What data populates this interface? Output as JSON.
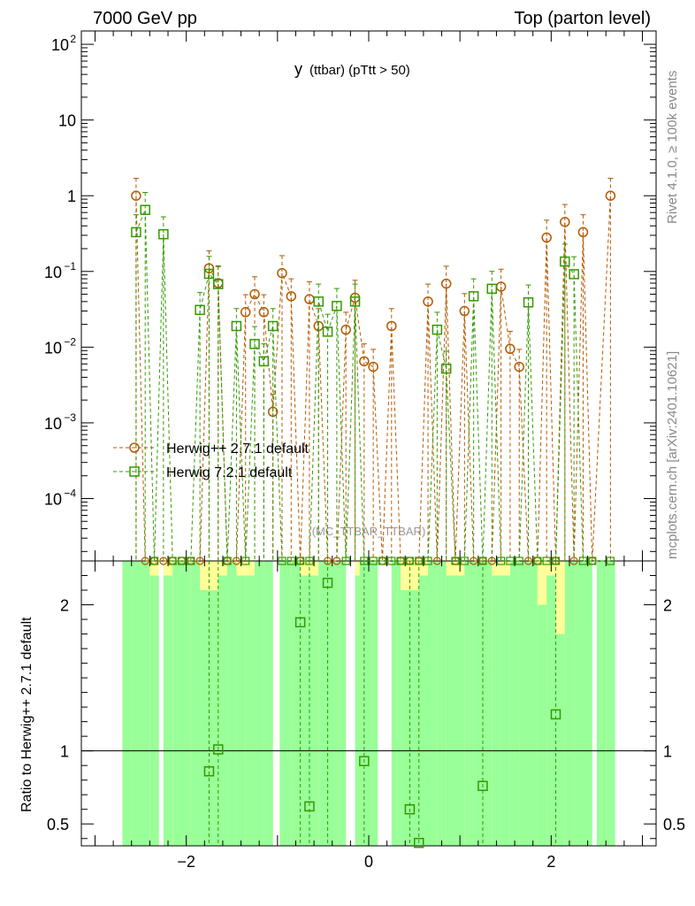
{
  "header": {
    "left": "7000 GeV pp",
    "right": "Top (parton level)"
  },
  "side_labels": {
    "rivet": "Rivet 4.1.0, ≥ 100k events",
    "mcplots": "mcplots.cern.ch [arXiv:2401.10621]"
  },
  "chart_data": {
    "type": "line",
    "title_main": "y",
    "title_sub": "(ttbar)  (pTtt > 50)",
    "watermark": "(MC_TTBAR_TTBAR)",
    "xlim": [
      -3.15,
      3.15
    ],
    "x_ticks": [
      -2,
      0,
      2
    ],
    "x_tick_labels": [
      "−2",
      "0",
      "2"
    ],
    "main_panel": {
      "yscale": "log",
      "ylim": [
        1.5e-05,
        150
      ],
      "y_ticks": [
        {
          "label": "10",
          "exp": "2",
          "value": 100
        },
        {
          "label": "10",
          "exp": "",
          "value": 10
        },
        {
          "label": "1",
          "exp": "",
          "value": 1
        },
        {
          "label": "10",
          "exp": "−1",
          "value": 0.1
        },
        {
          "label": "10",
          "exp": "−2",
          "value": 0.01
        },
        {
          "label": "10",
          "exp": "−3",
          "value": 0.001
        },
        {
          "label": "10",
          "exp": "−4",
          "value": 0.0001
        }
      ]
    },
    "ratio_panel": {
      "ylabel": "Ratio to Herwig++ 2.7.1 default",
      "ylim": [
        0.35,
        2.3
      ],
      "y_ticks": [
        0.5,
        1,
        2
      ],
      "y_tick_labels": [
        "0.5",
        "1",
        "2"
      ],
      "reference": 1,
      "bands": [
        {
          "x": -2.65,
          "w": 0.1,
          "y0": 0.35,
          "y1": 2.3,
          "y0g": 0.35,
          "y1g": 2.3
        },
        {
          "x": -2.55,
          "w": 0.1,
          "y0": 0.35,
          "y1": 2.3,
          "y0g": 0.35,
          "y1g": 2.3
        },
        {
          "x": -2.45,
          "w": 0.1,
          "y0": 0.35,
          "y1": 2.3,
          "y0g": 0.35,
          "y1g": 2.3
        },
        {
          "x": -2.35,
          "w": 0.1,
          "y0": 0.35,
          "y1": 2.3,
          "y0g": 0.35,
          "y1g": 2.2
        },
        {
          "x": -2.2,
          "w": 0.1,
          "y0": 0.35,
          "y1": 2.3,
          "y0g": 0.35,
          "y1g": 2.2
        },
        {
          "x": -2.1,
          "w": 0.1,
          "y0": 0.35,
          "y1": 2.3,
          "y0g": 0.35,
          "y1g": 2.3
        },
        {
          "x": -2.0,
          "w": 0.1,
          "y0": 0.35,
          "y1": 2.3,
          "y0g": 0.35,
          "y1g": 2.3
        },
        {
          "x": -1.9,
          "w": 0.1,
          "y0": 0.35,
          "y1": 2.3,
          "y0g": 0.35,
          "y1g": 2.3
        },
        {
          "x": -1.8,
          "w": 0.1,
          "y0": 0.35,
          "y1": 2.3,
          "y0g": 0.35,
          "y1g": 2.1
        },
        {
          "x": -1.7,
          "w": 0.1,
          "y0": 0.35,
          "y1": 2.3,
          "y0g": 0.35,
          "y1g": 2.1
        },
        {
          "x": -1.6,
          "w": 0.1,
          "y0": 0.35,
          "y1": 2.3,
          "y0g": 0.35,
          "y1g": 2.2
        },
        {
          "x": -1.5,
          "w": 0.1,
          "y0": 0.35,
          "y1": 2.3,
          "y0g": 0.35,
          "y1g": 2.3
        },
        {
          "x": -1.4,
          "w": 0.1,
          "y0": 0.35,
          "y1": 2.3,
          "y0g": 0.35,
          "y1g": 2.2
        },
        {
          "x": -1.3,
          "w": 0.1,
          "y0": 0.35,
          "y1": 2.3,
          "y0g": 0.35,
          "y1g": 2.2
        },
        {
          "x": -1.2,
          "w": 0.1,
          "y0": 0.35,
          "y1": 2.3,
          "y0g": 0.35,
          "y1g": 2.3
        },
        {
          "x": -1.1,
          "w": 0.1,
          "y0": 0.35,
          "y1": 2.3,
          "y0g": 0.35,
          "y1g": 2.3
        },
        {
          "x": -0.95,
          "w": 0.05,
          "y0": 0.35,
          "y1": 2.3,
          "y0g": 0.35,
          "y1g": 2.3
        },
        {
          "x": -0.9,
          "w": 0.1,
          "y0": 0.35,
          "y1": 2.3,
          "y0g": 0.35,
          "y1g": 2.3
        },
        {
          "x": -0.8,
          "w": 0.1,
          "y0": 0.35,
          "y1": 2.3,
          "y0g": 0.35,
          "y1g": 2.3
        },
        {
          "x": -0.7,
          "w": 0.1,
          "y0": 0.35,
          "y1": 2.3,
          "y0g": 0.35,
          "y1g": 2.2
        },
        {
          "x": -0.6,
          "w": 0.1,
          "y0": 0.35,
          "y1": 2.3,
          "y0g": 0.35,
          "y1g": 2.2
        },
        {
          "x": -0.5,
          "w": 0.1,
          "y0": 0.35,
          "y1": 2.3,
          "y0g": 0.35,
          "y1g": 2.3
        },
        {
          "x": -0.4,
          "w": 0.1,
          "y0": 0.35,
          "y1": 2.3,
          "y0g": 0.35,
          "y1g": 2.3
        },
        {
          "x": -0.3,
          "w": 0.1,
          "y0": 0.35,
          "y1": 2.3,
          "y0g": 0.35,
          "y1g": 2.3
        },
        {
          "x": -0.1,
          "w": 0.1,
          "y0": 0.35,
          "y1": 2.3,
          "y0g": 0.35,
          "y1g": 2.2
        },
        {
          "x": 0.0,
          "w": 0.2,
          "y0": 0.35,
          "y1": 2.3,
          "y0g": 0.35,
          "y1g": 2.3
        },
        {
          "x": 0.3,
          "w": 0.1,
          "y0": 0.35,
          "y1": 2.3,
          "y0g": 0.35,
          "y1g": 2.3
        },
        {
          "x": 0.4,
          "w": 0.1,
          "y0": 0.35,
          "y1": 2.3,
          "y0g": 0.35,
          "y1g": 2.1
        },
        {
          "x": 0.5,
          "w": 0.1,
          "y0": 0.35,
          "y1": 2.3,
          "y0g": 0.35,
          "y1g": 2.1
        },
        {
          "x": 0.6,
          "w": 0.1,
          "y0": 0.35,
          "y1": 2.3,
          "y0g": 0.35,
          "y1g": 2.2
        },
        {
          "x": 0.7,
          "w": 0.1,
          "y0": 0.35,
          "y1": 2.3,
          "y0g": 0.35,
          "y1g": 2.3
        },
        {
          "x": 0.8,
          "w": 0.1,
          "y0": 0.35,
          "y1": 2.3,
          "y0g": 0.35,
          "y1g": 2.3
        },
        {
          "x": 0.9,
          "w": 0.1,
          "y0": 0.35,
          "y1": 2.3,
          "y0g": 0.35,
          "y1g": 2.2
        },
        {
          "x": 1.0,
          "w": 0.1,
          "y0": 0.35,
          "y1": 2.3,
          "y0g": 0.35,
          "y1g": 2.2
        },
        {
          "x": 1.1,
          "w": 0.1,
          "y0": 0.35,
          "y1": 2.3,
          "y0g": 0.35,
          "y1g": 2.3
        },
        {
          "x": 1.2,
          "w": 0.1,
          "y0": 0.35,
          "y1": 2.3,
          "y0g": 0.35,
          "y1g": 2.3
        },
        {
          "x": 1.3,
          "w": 0.1,
          "y0": 0.35,
          "y1": 2.3,
          "y0g": 0.35,
          "y1g": 2.3
        },
        {
          "x": 1.4,
          "w": 0.1,
          "y0": 0.35,
          "y1": 2.3,
          "y0g": 0.35,
          "y1g": 2.2
        },
        {
          "x": 1.5,
          "w": 0.1,
          "y0": 0.35,
          "y1": 2.3,
          "y0g": 0.35,
          "y1g": 2.2
        },
        {
          "x": 1.6,
          "w": 0.1,
          "y0": 0.35,
          "y1": 2.3,
          "y0g": 0.35,
          "y1g": 2.3
        },
        {
          "x": 1.7,
          "w": 0.1,
          "y0": 0.35,
          "y1": 2.3,
          "y0g": 0.35,
          "y1g": 2.3
        },
        {
          "x": 1.8,
          "w": 0.1,
          "y0": 0.35,
          "y1": 2.3,
          "y0g": 0.35,
          "y1g": 2.3
        },
        {
          "x": 1.9,
          "w": 0.1,
          "y0": 0.35,
          "y1": 2.3,
          "y0g": 0.35,
          "y1g": 2.0
        },
        {
          "x": 2.0,
          "w": 0.1,
          "y0": 0.35,
          "y1": 2.3,
          "y0g": 0.35,
          "y1g": 2.2
        },
        {
          "x": 2.1,
          "w": 0.1,
          "y0": 0.35,
          "y1": 2.3,
          "y0g": 0.35,
          "y1g": 1.8
        },
        {
          "x": 2.2,
          "w": 0.1,
          "y0": 0.35,
          "y1": 2.3,
          "y0g": 0.35,
          "y1g": 2.3
        },
        {
          "x": 2.3,
          "w": 0.1,
          "y0": 0.35,
          "y1": 2.3,
          "y0g": 0.35,
          "y1g": 2.3
        },
        {
          "x": 2.4,
          "w": 0.1,
          "y0": 0.35,
          "y1": 2.3,
          "y0g": 0.35,
          "y1g": 2.3
        },
        {
          "x": 2.55,
          "w": 0.1,
          "y0": 0.35,
          "y1": 2.3,
          "y0g": 0.35,
          "y1g": 2.3
        },
        {
          "x": 2.65,
          "w": 0.1,
          "y0": 0.35,
          "y1": 2.3,
          "y0g": 0.35,
          "y1g": 2.3
        }
      ]
    },
    "series": [
      {
        "name": "Herwig++ 2.7.1 default",
        "color": "#b35900",
        "marker": "circle",
        "x": [
          -2.55,
          -2.45,
          -2.35,
          -2.25,
          -2.15,
          -2.05,
          -1.95,
          -1.85,
          -1.75,
          -1.65,
          -1.55,
          -1.45,
          -1.35,
          -1.25,
          -1.15,
          -1.05,
          -0.95,
          -0.85,
          -0.75,
          -0.65,
          -0.55,
          -0.45,
          -0.35,
          -0.25,
          -0.15,
          -0.05,
          0.05,
          0.15,
          0.25,
          0.35,
          0.45,
          0.55,
          0.65,
          0.75,
          0.85,
          0.95,
          1.05,
          1.15,
          1.25,
          1.35,
          1.45,
          1.55,
          1.65,
          1.75,
          1.85,
          1.95,
          2.05,
          2.15,
          2.25,
          2.35,
          2.45,
          2.65
        ],
        "y": [
          1.0,
          0,
          0,
          0,
          0,
          0,
          0,
          0,
          0.11,
          0.07,
          0,
          0,
          0.029,
          0.05,
          0.029,
          0.0014,
          0.095,
          0.047,
          0,
          0.043,
          0.019,
          0,
          0,
          0.017,
          0.045,
          0.0065,
          0.0055,
          0,
          0.019,
          0,
          0,
          0,
          0.04,
          0,
          0.069,
          0,
          0.03,
          0,
          0,
          0,
          0.063,
          0.0095,
          0.0055,
          0,
          0,
          0.28,
          0,
          0.45,
          0,
          0.33,
          0,
          1.0
        ]
      },
      {
        "name": "Herwig 7.2.1 default",
        "color": "#339900",
        "marker": "square",
        "x": [
          -2.55,
          -2.45,
          -2.35,
          -2.25,
          -2.15,
          -2.05,
          -1.95,
          -1.85,
          -1.75,
          -1.65,
          -1.55,
          -1.45,
          -1.35,
          -1.25,
          -1.15,
          -1.05,
          -0.95,
          -0.85,
          -0.75,
          -0.65,
          -0.55,
          -0.45,
          -0.35,
          -0.25,
          -0.15,
          -0.05,
          0.05,
          0.15,
          0.25,
          0.35,
          0.45,
          0.55,
          0.65,
          0.75,
          0.85,
          0.95,
          1.05,
          1.15,
          1.25,
          1.35,
          1.45,
          1.55,
          1.65,
          1.75,
          1.85,
          1.95,
          2.05,
          2.15,
          2.25,
          2.35,
          2.45,
          2.65
        ],
        "y": [
          0.33,
          0.65,
          0,
          0.31,
          0,
          0,
          0,
          0.031,
          0.093,
          0.068,
          0,
          0.019,
          0,
          0.011,
          0.0065,
          0.019,
          0,
          0,
          0,
          0,
          0.04,
          0.016,
          0.035,
          0,
          0.04,
          0,
          0,
          0,
          0,
          0,
          0,
          0,
          0,
          0.017,
          0.0052,
          0,
          0,
          0.047,
          0,
          0.059,
          0,
          0,
          0,
          0.039,
          0,
          0,
          0,
          0.135,
          0.092,
          0,
          0,
          0
        ]
      }
    ],
    "ratio_series": [
      {
        "name": "Herwig 7.2.1 default",
        "color": "#339900",
        "x": [
          -1.75,
          -1.65,
          -0.75,
          -0.65,
          -0.45,
          -0.05,
          0.45,
          0.55,
          1.25,
          2.05
        ],
        "y": [
          0.86,
          1.01,
          1.88,
          0.62,
          2.15,
          0.93,
          0.6,
          0.37,
          0.76,
          1.25
        ]
      }
    ]
  }
}
